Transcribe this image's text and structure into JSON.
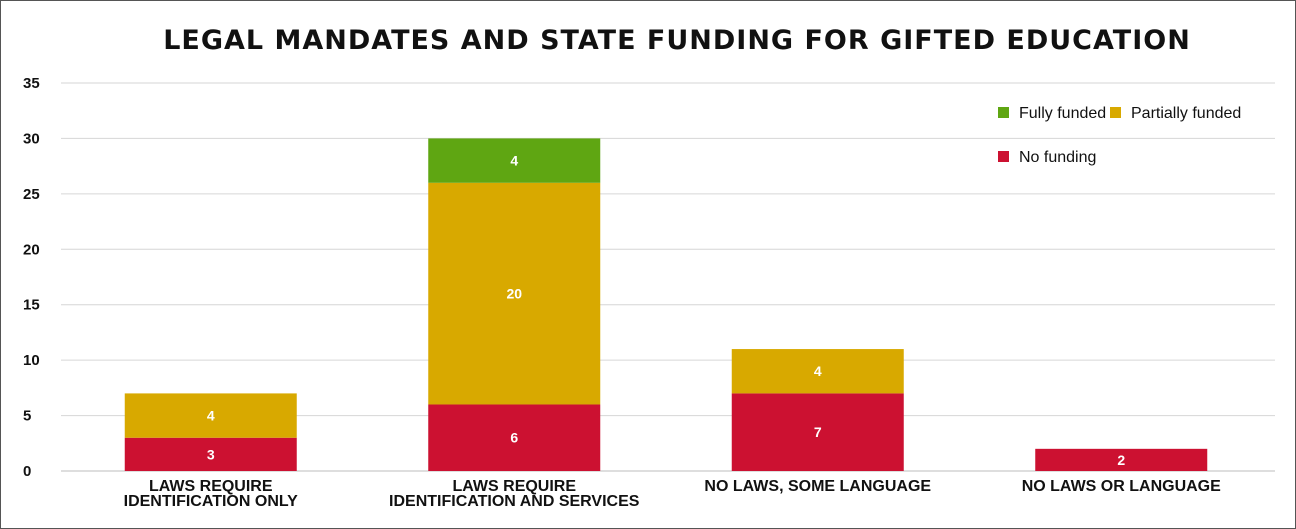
{
  "chart_data": {
    "type": "bar",
    "stacked": true,
    "title": "LEGAL MANDATES AND STATE FUNDING FOR GIFTED EDUCATION",
    "categories": [
      [
        "LAWS REQUIRE",
        "IDENTIFICATION ONLY"
      ],
      [
        "LAWS REQUIRE",
        "IDENTIFICATION AND SERVICES"
      ],
      [
        "NO LAWS, SOME LANGUAGE"
      ],
      [
        "NO LAWS OR LANGUAGE"
      ]
    ],
    "series": [
      {
        "name": "No funding",
        "color": "#cc1131",
        "values": [
          3,
          6,
          7,
          2
        ]
      },
      {
        "name": "Partially funded",
        "color": "#d8a900",
        "values": [
          4,
          20,
          4,
          0
        ]
      },
      {
        "name": "Fully funded",
        "color": "#5fa612",
        "values": [
          0,
          4,
          0,
          0
        ]
      }
    ],
    "ylim": [
      0,
      35
    ],
    "yticks": [
      0,
      5,
      10,
      15,
      20,
      25,
      30,
      35
    ],
    "grid": true,
    "legend_position": "top-right",
    "legend_order": [
      "Fully funded",
      "Partially funded",
      "No funding"
    ]
  }
}
